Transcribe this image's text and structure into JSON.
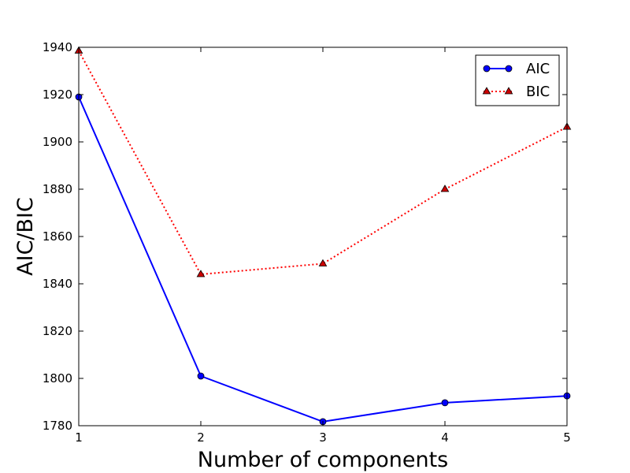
{
  "chart_data": {
    "type": "line",
    "title": "",
    "xlabel": "Number of components",
    "ylabel": "AIC/BIC",
    "x": [
      1,
      2,
      3,
      4,
      5
    ],
    "xlim": [
      1,
      5
    ],
    "ylim": [
      1780,
      1940
    ],
    "xticks": [
      1,
      2,
      3,
      4,
      5
    ],
    "yticks": [
      1780,
      1800,
      1820,
      1840,
      1860,
      1880,
      1900,
      1920,
      1940
    ],
    "grid": false,
    "legend_position": "top-right",
    "series": [
      {
        "name": "AIC",
        "values": [
          1919,
          1801,
          1781.7,
          1789.7,
          1792.6
        ],
        "color": "#0000ff",
        "line_style": "solid",
        "marker": "circle"
      },
      {
        "name": "BIC",
        "values": [
          1938.5,
          1844,
          1848.5,
          1880,
          1906.3
        ],
        "color": "#ff0000",
        "marker_fill": "#cc0000",
        "line_style": "dotted",
        "marker": "triangle"
      }
    ]
  }
}
